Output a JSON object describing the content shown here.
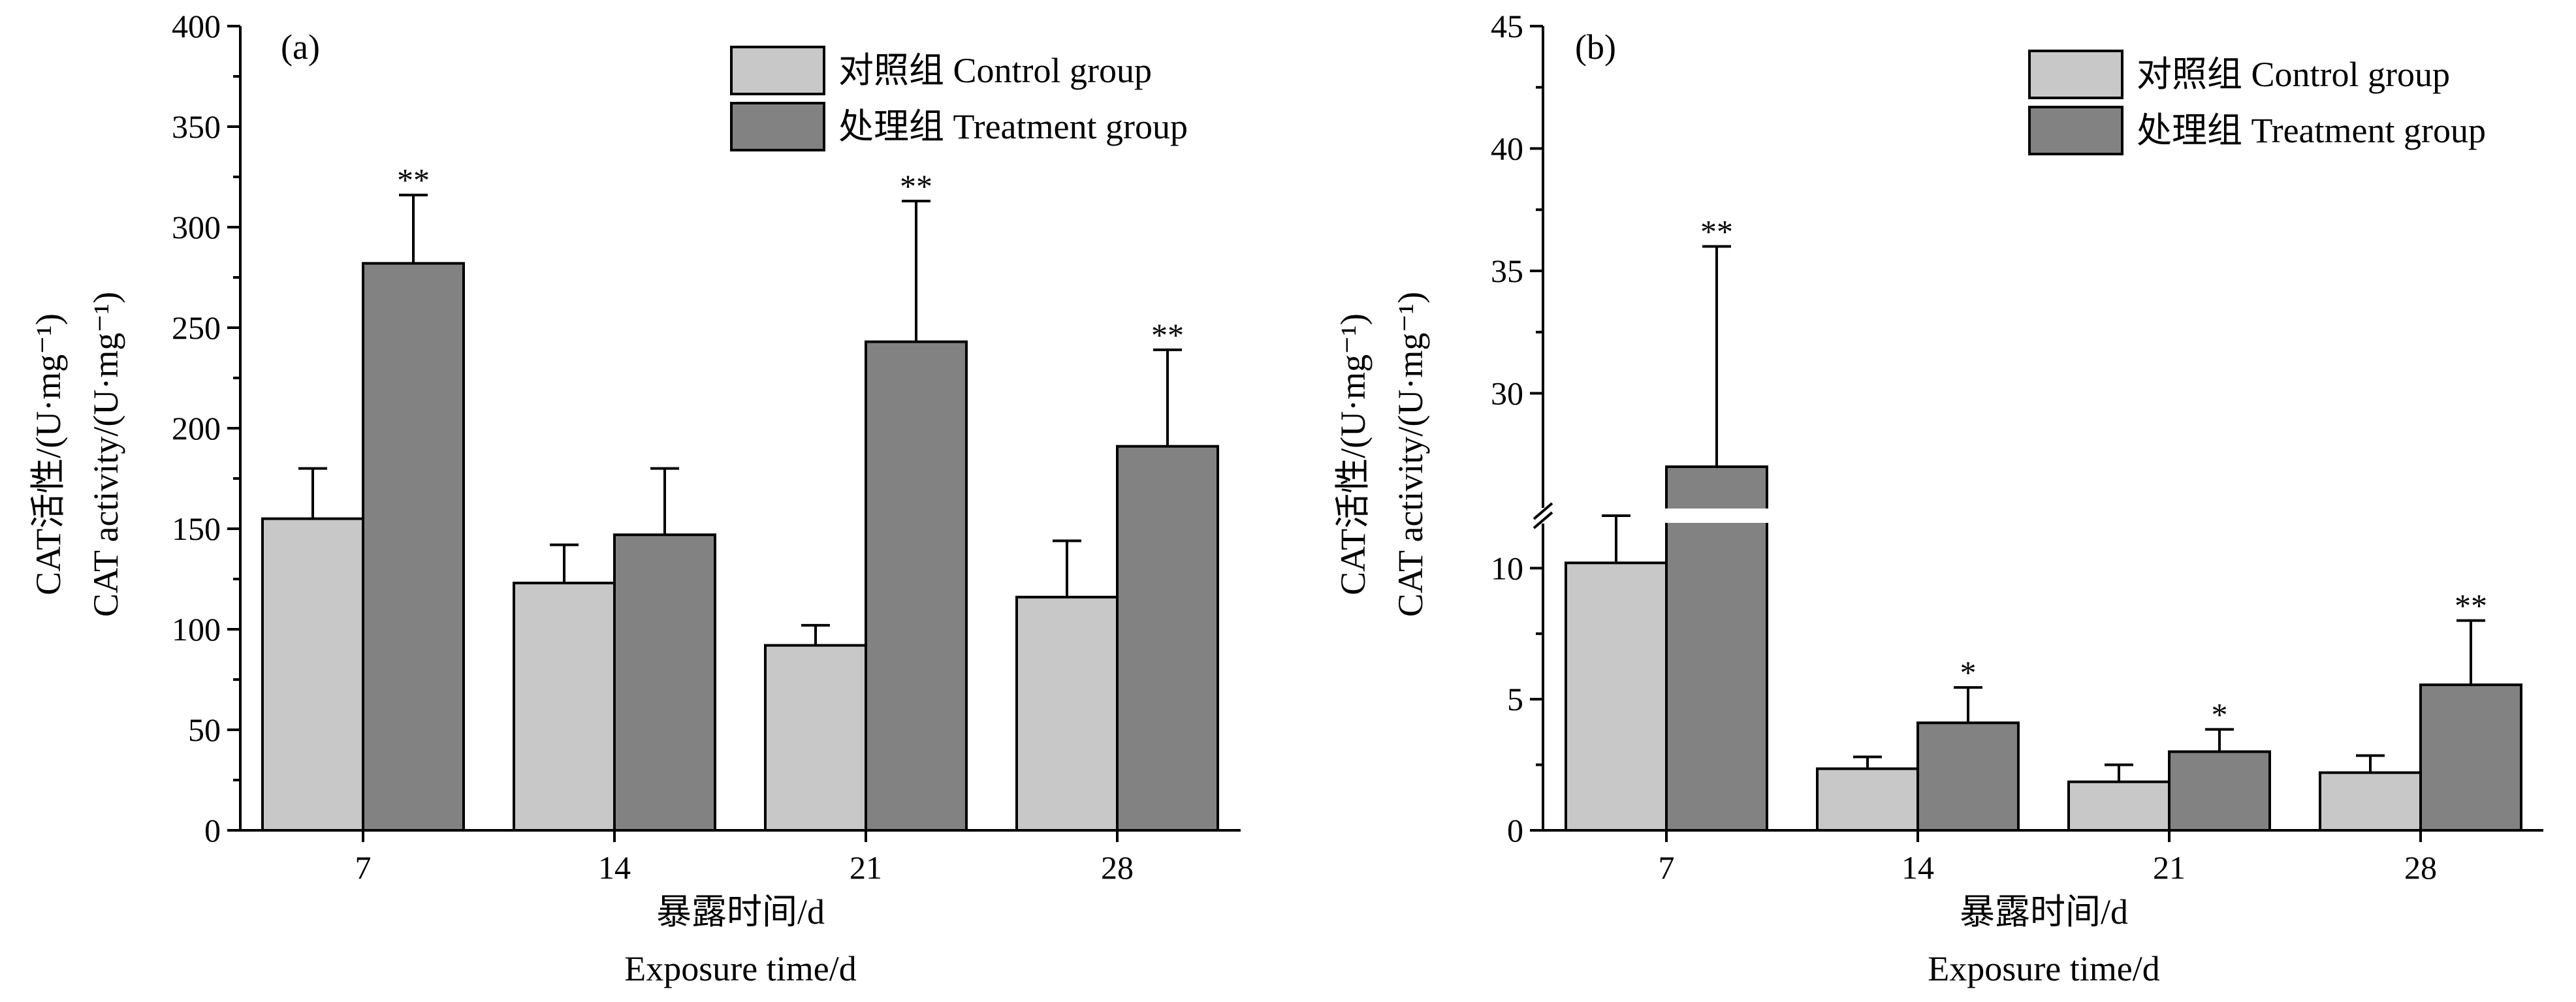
{
  "chart_data": [
    {
      "type": "bar",
      "panel_label": "(a)",
      "categories": [
        "7",
        "14",
        "21",
        "28"
      ],
      "series": [
        {
          "name": "对照组 Control group",
          "color": "#c8c8c8",
          "values": [
            155,
            123,
            92,
            116
          ],
          "errors": [
            25,
            19,
            10,
            28
          ],
          "significance": [
            "",
            "",
            "",
            ""
          ]
        },
        {
          "name": "处理组 Treatment group",
          "color": "#828282",
          "values": [
            282,
            147,
            243,
            191
          ],
          "errors": [
            34,
            33,
            70,
            48
          ],
          "significance": [
            "**",
            "",
            "**",
            "**"
          ]
        }
      ],
      "xlabel": [
        "暴露时间/d",
        "Exposure time/d"
      ],
      "ylabel": [
        "CAT活性/(U·mg⁻¹)",
        "CAT activity/(U·mg⁻¹)"
      ],
      "ylim": [
        0,
        400
      ],
      "yticks": [
        0,
        50,
        100,
        150,
        200,
        250,
        300,
        350,
        400
      ],
      "grid": false,
      "legend_position": "top-right"
    },
    {
      "type": "bar",
      "panel_label": "(b)",
      "categories": [
        "7",
        "14",
        "21",
        "28"
      ],
      "series": [
        {
          "name": "对照组 Control group",
          "color": "#c8c8c8",
          "values": [
            10.2,
            2.35,
            1.85,
            2.2
          ],
          "errors": [
            1.8,
            0.45,
            0.65,
            0.65
          ],
          "significance": [
            "",
            "",
            "",
            ""
          ]
        },
        {
          "name": "处理组 Treatment group",
          "color": "#828282",
          "values": [
            27,
            4.1,
            3.0,
            5.55
          ],
          "errors": [
            9,
            1.35,
            0.85,
            2.45
          ],
          "significance": [
            "**",
            "*",
            "*",
            "**"
          ]
        }
      ],
      "xlabel": [
        "暴露时间/d",
        "Exposure time/d"
      ],
      "ylabel": [
        "CAT活性/(U·mg⁻¹)",
        "CAT activity/(U·mg⁻¹)"
      ],
      "ylim": [
        0,
        45
      ],
      "axis_break": [
        12,
        25
      ],
      "yticks": [
        0,
        5,
        10,
        30,
        35,
        40,
        45
      ],
      "grid": false,
      "legend_position": "top-right"
    }
  ]
}
